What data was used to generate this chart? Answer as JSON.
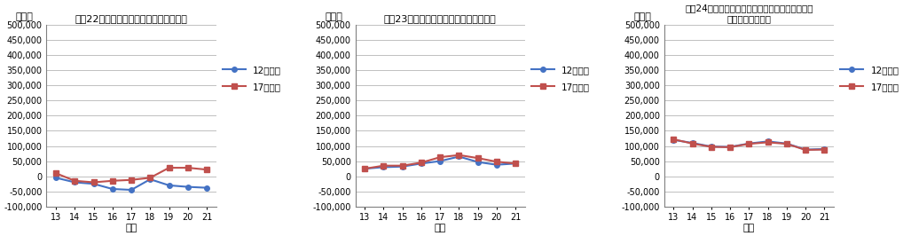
{
  "charts": [
    {
      "title": "（図22）財産所得（家計・利子）の比較",
      "ylabel": "百万円",
      "xlabel": "年度",
      "years": [
        13,
        14,
        15,
        16,
        17,
        18,
        19,
        20,
        21
      ],
      "series_12": [
        -5000,
        -20000,
        -25000,
        -42000,
        -45000,
        -10000,
        -30000,
        -35000,
        -38000
      ],
      "series_17": [
        10000,
        -15000,
        -20000,
        -15000,
        -12000,
        -5000,
        28000,
        28000,
        22000
      ],
      "ylim": [
        -100000,
        500000
      ],
      "yticks": [
        -100000,
        -50000,
        0,
        50000,
        100000,
        150000,
        200000,
        250000,
        300000,
        350000,
        400000,
        450000,
        500000
      ]
    },
    {
      "title": "（図23）財産所得（家計・配当）の比較",
      "ylabel": "百万円",
      "xlabel": "年度",
      "years": [
        13,
        14,
        15,
        16,
        17,
        18,
        19,
        20,
        21
      ],
      "series_12": [
        25000,
        30000,
        32000,
        42000,
        50000,
        65000,
        47000,
        38000,
        42000
      ],
      "series_17": [
        25000,
        35000,
        35000,
        45000,
        63000,
        70000,
        60000,
        48000,
        42000
      ],
      "ylim": [
        -100000,
        500000
      ],
      "yticks": [
        -100000,
        -50000,
        0,
        50000,
        100000,
        150000,
        200000,
        250000,
        300000,
        350000,
        400000,
        450000,
        500000
      ]
    },
    {
      "title": "（図24）財産所得（家計・保険契約者に帰属する\n財産所得）の比較",
      "ylabel": "百万円",
      "xlabel": "年度",
      "years": [
        13,
        14,
        15,
        16,
        17,
        18,
        19,
        20,
        21
      ],
      "series_12": [
        120000,
        110000,
        98000,
        97000,
        108000,
        115000,
        108000,
        88000,
        90000
      ],
      "series_17": [
        122000,
        108000,
        97000,
        96000,
        107000,
        112000,
        107000,
        87000,
        88000
      ],
      "ylim": [
        -100000,
        500000
      ],
      "yticks": [
        -100000,
        -50000,
        0,
        50000,
        100000,
        150000,
        200000,
        250000,
        300000,
        350000,
        400000,
        450000,
        500000
      ]
    }
  ],
  "color_12": "#4472C4",
  "color_17": "#C0504D",
  "legend_12": "12年基準",
  "legend_17": "17年基準",
  "bg_color": "#FFFFFF",
  "grid_color": "#C0C0C0",
  "marker_size": 4,
  "line_width": 1.5
}
